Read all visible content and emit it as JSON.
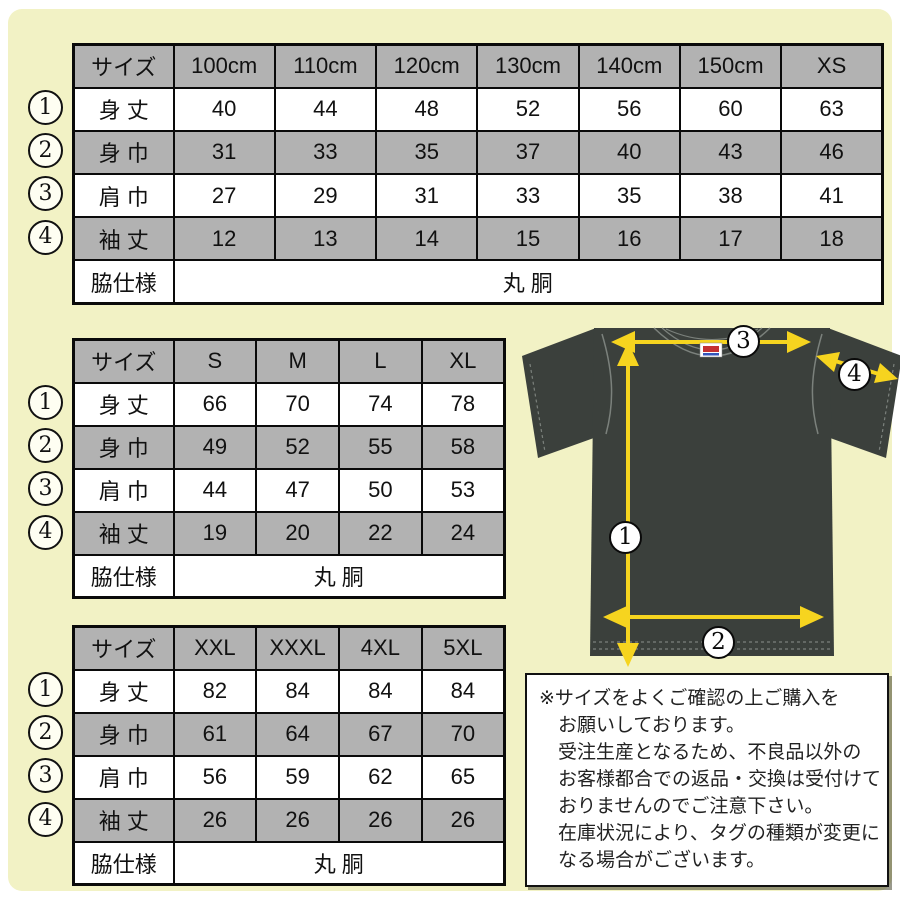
{
  "colors": {
    "bg": "#f2f2c5",
    "gray": "#b2b2b2",
    "shirt": "#3b403c",
    "seam": "#7b817c",
    "arrow": "#f6d41f"
  },
  "tables": [
    {
      "name": "kids-xs",
      "header": [
        "サイズ",
        "100cm",
        "110cm",
        "120cm",
        "130cm",
        "140cm",
        "150cm",
        "XS"
      ],
      "rows": [
        {
          "num": "1",
          "label": "身 丈",
          "values": [
            "40",
            "44",
            "48",
            "52",
            "56",
            "60",
            "63"
          ]
        },
        {
          "num": "2",
          "label": "身 巾",
          "values": [
            "31",
            "33",
            "35",
            "37",
            "40",
            "43",
            "46"
          ]
        },
        {
          "num": "3",
          "label": "肩 巾",
          "values": [
            "27",
            "29",
            "31",
            "33",
            "35",
            "38",
            "41"
          ]
        },
        {
          "num": "4",
          "label": "袖 丈",
          "values": [
            "12",
            "13",
            "14",
            "15",
            "16",
            "17",
            "18"
          ]
        }
      ],
      "footer_label": "脇仕様",
      "footer_value": "丸 胴"
    },
    {
      "name": "s-xl",
      "header": [
        "サイズ",
        "S",
        "M",
        "L",
        "XL"
      ],
      "rows": [
        {
          "num": "1",
          "label": "身 丈",
          "values": [
            "66",
            "70",
            "74",
            "78"
          ]
        },
        {
          "num": "2",
          "label": "身 巾",
          "values": [
            "49",
            "52",
            "55",
            "58"
          ]
        },
        {
          "num": "3",
          "label": "肩 巾",
          "values": [
            "44",
            "47",
            "50",
            "53"
          ]
        },
        {
          "num": "4",
          "label": "袖 丈",
          "values": [
            "19",
            "20",
            "22",
            "24"
          ]
        }
      ],
      "footer_label": "脇仕様",
      "footer_value": "丸 胴"
    },
    {
      "name": "xxl-5xl",
      "header": [
        "サイズ",
        "XXL",
        "XXXL",
        "4XL",
        "5XL"
      ],
      "rows": [
        {
          "num": "1",
          "label": "身 丈",
          "values": [
            "82",
            "84",
            "84",
            "84"
          ]
        },
        {
          "num": "2",
          "label": "身 巾",
          "values": [
            "61",
            "64",
            "67",
            "70"
          ]
        },
        {
          "num": "3",
          "label": "肩 巾",
          "values": [
            "56",
            "59",
            "62",
            "65"
          ]
        },
        {
          "num": "4",
          "label": "袖 丈",
          "values": [
            "26",
            "26",
            "26",
            "26"
          ]
        }
      ],
      "footer_label": "脇仕様",
      "footer_value": "丸 胴"
    }
  ],
  "shirt": {
    "callouts": [
      "1",
      "2",
      "3",
      "4"
    ]
  },
  "notice": {
    "lines": [
      "※サイズをよくご確認の上ご購入を",
      "お願いしております。",
      "受注生産となるため、不良品以外の",
      "お客様都合での返品・交換は受付けて",
      "おりませんのでご注意下さい。",
      "在庫状況により、タグの種類が変更に",
      "なる場合がございます。"
    ]
  }
}
